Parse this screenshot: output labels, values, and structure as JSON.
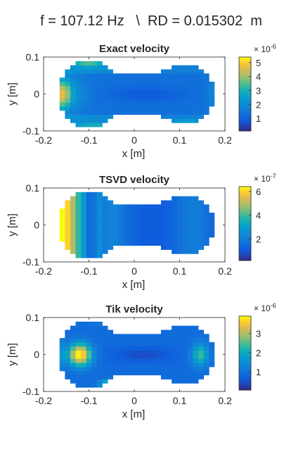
{
  "figure_title": "f = 107.12 Hz   \\  RD = 0.015302  m",
  "colors": {
    "text": "#262626",
    "axis": "#262626",
    "background": "#ffffff"
  },
  "colormap": "parula",
  "chart_data": [
    {
      "type": "heatmap",
      "title": "Exact velocity",
      "xlabel": "x [m]",
      "ylabel": "y [m]",
      "xlim": [
        -0.2,
        0.2
      ],
      "ylim": [
        -0.1,
        0.1
      ],
      "xticks": [
        -0.2,
        -0.1,
        0,
        0.1,
        0.2
      ],
      "xtick_labels": [
        "-0.2",
        "-0.1",
        "0",
        "0.1",
        "0.2"
      ],
      "yticks": [
        -0.1,
        0,
        0.1
      ],
      "ytick_labels": [
        "-0.1",
        "0",
        "0.1"
      ],
      "colorbar": {
        "exponent_label": "× 10",
        "exponent": "-6",
        "clim": [
          0.1,
          5.4
        ],
        "ticks": [
          1,
          2,
          3,
          4,
          5
        ],
        "tick_labels": [
          "1",
          "2",
          "3",
          "4",
          "5"
        ]
      },
      "pattern": "exact"
    },
    {
      "type": "heatmap",
      "title": "TSVD velocity",
      "xlabel": "x [m]",
      "ylabel": "y [m]",
      "xlim": [
        -0.2,
        0.2
      ],
      "ylim": [
        -0.1,
        0.1
      ],
      "xticks": [
        -0.2,
        -0.1,
        0,
        0.1,
        0.2
      ],
      "xtick_labels": [
        "-0.2",
        "-0.1",
        "0",
        "0.1",
        "0.2"
      ],
      "yticks": [
        -0.1,
        0,
        0.1
      ],
      "ytick_labels": [
        "-0.1",
        "0",
        "0.1"
      ],
      "colorbar": {
        "exponent_label": "× 10",
        "exponent": "-7",
        "clim": [
          0.2,
          6.4
        ],
        "ticks": [
          2,
          4,
          6
        ],
        "tick_labels": [
          "2",
          "4",
          "6"
        ]
      },
      "pattern": "tsvd"
    },
    {
      "type": "heatmap",
      "title": "Tik velocity",
      "xlabel": "x [m]",
      "ylabel": "y [m]",
      "xlim": [
        -0.2,
        0.2
      ],
      "ylim": [
        -0.1,
        0.1
      ],
      "xticks": [
        -0.2,
        -0.1,
        0,
        0.1,
        0.2
      ],
      "xtick_labels": [
        "-0.2",
        "-0.1",
        "0",
        "0.1",
        "0.2"
      ],
      "yticks": [
        -0.1,
        0,
        0.1
      ],
      "ytick_labels": [
        "-0.1",
        "0",
        "0.1"
      ],
      "colorbar": {
        "exponent_label": "× 10",
        "exponent": "-6",
        "clim": [
          0.05,
          3.9
        ],
        "ticks": [
          1,
          2,
          3
        ],
        "tick_labels": [
          "1",
          "2",
          "3"
        ]
      },
      "pattern": "tik"
    }
  ]
}
